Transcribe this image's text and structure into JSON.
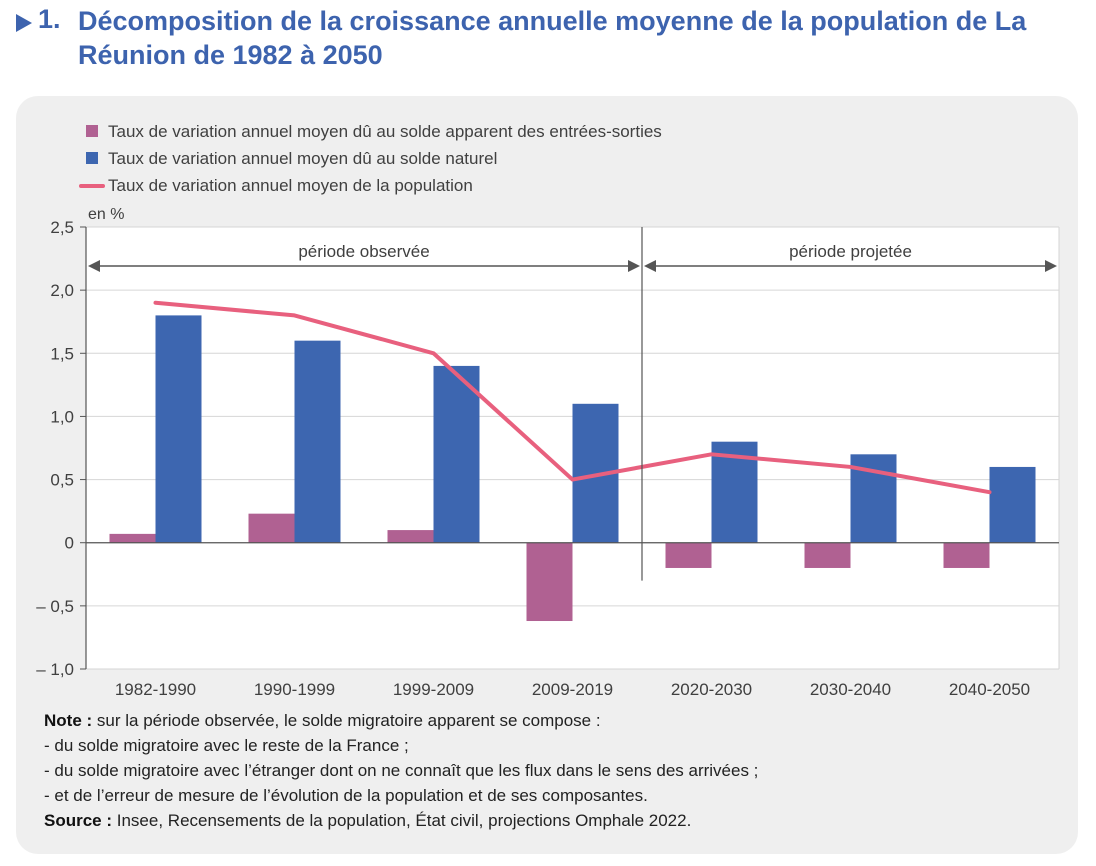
{
  "header": {
    "number": "1.",
    "title": "Décomposition de la croissance annuelle moyenne de la population de La Réunion de 1982 à 2050"
  },
  "colors": {
    "title": "#3d63ae",
    "migration_bar": "#b06192",
    "natural_bar": "#3d66b0",
    "population_line": "#e8607e",
    "panel_bg": "#efefef"
  },
  "chart_data": {
    "type": "bar",
    "ylabel": "en %",
    "ylim": [
      -1.0,
      2.5
    ],
    "yticks": [
      2.5,
      2.0,
      1.5,
      1.0,
      0.5,
      0,
      -0.5,
      -1.0
    ],
    "ytick_labels": [
      "2,5",
      "2,0",
      "1,5",
      "1,0",
      "0,5",
      "0",
      "– 0,5",
      "– 1,0"
    ],
    "grid": true,
    "legend_position": "top-left",
    "categories": [
      "1982-1990",
      "1990-1999",
      "1999-2009",
      "2009-2019",
      "2020-2030",
      "2030-2040",
      "2040-2050"
    ],
    "series": [
      {
        "name": "Taux de variation annuel moyen dû au solde apparent des entrées-sorties",
        "kind": "bar",
        "values": [
          0.07,
          0.23,
          0.1,
          -0.62,
          -0.2,
          -0.2,
          -0.2
        ]
      },
      {
        "name": "Taux de variation annuel moyen dû au solde naturel",
        "kind": "bar",
        "values": [
          1.8,
          1.6,
          1.4,
          1.1,
          0.8,
          0.7,
          0.6
        ]
      },
      {
        "name": "Taux de variation annuel moyen de la population",
        "kind": "line",
        "values": [
          1.9,
          1.8,
          1.5,
          0.5,
          0.7,
          0.6,
          0.4
        ]
      }
    ],
    "annotations": {
      "observed_label": "période observée",
      "projected_label": "période projetée"
    }
  },
  "notes": {
    "note_label": "Note :",
    "note_text": " sur la période observée, le solde migratoire apparent se compose :",
    "bullets": [
      "- du solde migratoire avec le reste de la France ;",
      "- du solde migratoire avec l’étranger dont on ne connaît que les flux dans le sens des arrivées ;",
      "- et de l’erreur de mesure de l’évolution de la population et de ses composantes."
    ],
    "source_label": "Source :",
    "source_text": " Insee, Recensements de la population, État civil, projections Omphale 2022."
  }
}
